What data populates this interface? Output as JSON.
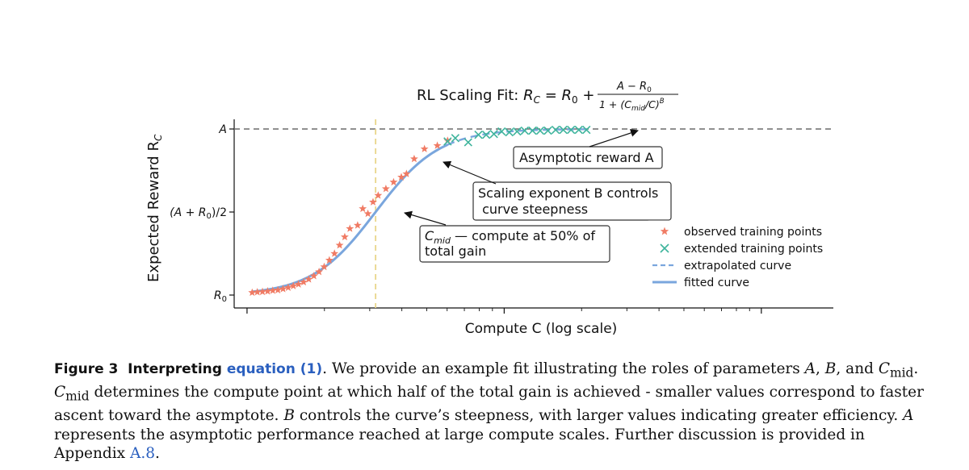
{
  "figure": {
    "caption": {
      "label": "Figure 3",
      "lead": "Interpreting",
      "link_text": "equation (1)",
      "text_1": ". We provide an example fit illustrating the roles of parameters ",
      "param_a": "A",
      "comma_1": ", ",
      "param_b": "B",
      "comma_2": ", and ",
      "param_cmid": "C",
      "param_cmid_sub": "mid",
      "text_2": ". ",
      "param_cmid2": "C",
      "param_cmid2_sub": "mid",
      "text_3": " determines the compute point at which half of the total gain is achieved - smaller values correspond to faster ascent toward the asymptote. ",
      "param_b2": "B",
      "text_4": " controls the curve’s steepness, with larger values indicating greater efficiency. ",
      "param_a2": "A",
      "text_5": " represents the asymptotic performance reached at large compute scales. Further discussion is provided in Appendix ",
      "appendix_link": "A.8",
      "text_6": "."
    }
  },
  "chart_data": {
    "type": "scatter",
    "title": {
      "prefix": "RL Scaling Fit: ",
      "lhs_main": "R",
      "lhs_sub": "C",
      "equals": " = ",
      "r0_main": "R",
      "r0_sub": "0",
      "plus": " + ",
      "numerator": "A − R",
      "numerator_sub": "0",
      "denominator_prefix": "1 + (C",
      "denominator_sub": "mid",
      "denominator_suffix": "/C)",
      "denominator_exp": "B"
    },
    "xlabel": "Compute  C  (log scale)",
    "ylabel_main": "Expected Reward  R",
    "ylabel_sub": "C",
    "x_scale": "log",
    "x_tick_labels": [],
    "y_ticks": [
      {
        "value": 0.0,
        "label_main": "R",
        "label_sub": "0",
        "label_suffix": ""
      },
      {
        "value": 0.5,
        "label_main": "(A + R",
        "label_sub": "0",
        "label_suffix": ")/2"
      },
      {
        "value": 1.0,
        "label_main": "A",
        "label_sub": "",
        "label_suffix": ""
      }
    ],
    "xlim": [
      -1.05,
      1.28
    ],
    "ylim": [
      -0.09,
      1.1
    ],
    "params": {
      "R0": 0.0,
      "A": 1.0,
      "log_cmid": -0.5,
      "B": 3.5
    },
    "asymptote_y": 1.0,
    "cmid_x": -0.5,
    "fit_range": [
      -0.98,
      -0.22
    ],
    "extrapolate_range": [
      -0.22,
      0.32
    ],
    "series": [
      {
        "name": "observed training points",
        "marker": "star",
        "color": "#f07b64",
        "points": [
          [
            -0.98,
            0.015
          ],
          [
            -0.96,
            0.018
          ],
          [
            -0.94,
            0.02
          ],
          [
            -0.92,
            0.023
          ],
          [
            -0.9,
            0.027
          ],
          [
            -0.88,
            0.03
          ],
          [
            -0.86,
            0.037
          ],
          [
            -0.84,
            0.045
          ],
          [
            -0.82,
            0.055
          ],
          [
            -0.8,
            0.065
          ],
          [
            -0.78,
            0.078
          ],
          [
            -0.76,
            0.095
          ],
          [
            -0.74,
            0.115
          ],
          [
            -0.72,
            0.14
          ],
          [
            -0.7,
            0.17
          ],
          [
            -0.68,
            0.21
          ],
          [
            -0.66,
            0.25
          ],
          [
            -0.64,
            0.3
          ],
          [
            -0.62,
            0.35
          ],
          [
            -0.6,
            0.4
          ],
          [
            -0.57,
            0.42
          ],
          [
            -0.55,
            0.52
          ],
          [
            -0.53,
            0.49
          ],
          [
            -0.51,
            0.56
          ],
          [
            -0.49,
            0.6
          ],
          [
            -0.46,
            0.64
          ],
          [
            -0.43,
            0.68
          ],
          [
            -0.4,
            0.71
          ],
          [
            -0.38,
            0.73
          ],
          [
            -0.35,
            0.82
          ],
          [
            -0.31,
            0.88
          ],
          [
            -0.26,
            0.9
          ],
          [
            -0.22,
            0.93
          ]
        ]
      },
      {
        "name": "extended training points",
        "marker": "x",
        "color": "#3eb49c",
        "points": [
          [
            -0.22,
            0.925
          ],
          [
            -0.19,
            0.945
          ],
          [
            -0.14,
            0.92
          ],
          [
            -0.1,
            0.965
          ],
          [
            -0.07,
            0.965
          ],
          [
            -0.04,
            0.97
          ],
          [
            -0.01,
            0.985
          ],
          [
            0.02,
            0.98
          ],
          [
            0.05,
            0.985
          ],
          [
            0.08,
            0.99
          ],
          [
            0.11,
            0.99
          ],
          [
            0.14,
            0.99
          ],
          [
            0.17,
            0.99
          ],
          [
            0.2,
            0.995
          ],
          [
            0.23,
            0.995
          ],
          [
            0.26,
            0.995
          ],
          [
            0.29,
            0.995
          ],
          [
            0.32,
            0.995
          ]
        ]
      }
    ],
    "legend": {
      "position": "right",
      "items": [
        {
          "label": "observed training points",
          "kind": "star",
          "color": "#f07b64"
        },
        {
          "label": "extended training points",
          "kind": "x",
          "color": "#3eb49c"
        },
        {
          "label": "extrapolated curve",
          "kind": "dashed",
          "color": "#7aa6dd"
        },
        {
          "label": "fitted curve",
          "kind": "solid",
          "color": "#7aa6dd"
        }
      ]
    },
    "annotations": [
      {
        "id": "asymptote",
        "lines": [
          "Asymptotic reward A"
        ],
        "point": [
          0.5,
          1.0
        ]
      },
      {
        "id": "exponent",
        "lines": [
          "Scaling exponent B controls",
          " curve steepness"
        ],
        "point": [
          -0.3,
          0.82
        ]
      },
      {
        "id": "cmid",
        "lines_main": "C",
        "lines_sub": "mid",
        "line1_rest": " — compute at 50% of",
        "line2": "total gain",
        "point": [
          -0.5,
          0.5
        ]
      }
    ],
    "colors": {
      "asymptote_line": "#6b6b6b",
      "cmid_line": "#e8d58a",
      "curve": "#7aa6dd",
      "observed": "#f07b64",
      "extended": "#3eb49c"
    }
  }
}
